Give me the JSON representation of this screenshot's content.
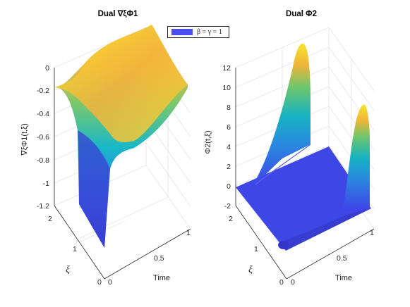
{
  "chart_data": [
    {
      "type": "surface",
      "title": "Dual ∇ξΦ1",
      "xlabel": "Time",
      "ylabel": "ξ",
      "zlabel": "∇ξΦ1(t,ξ)",
      "xlim": [
        0,
        1
      ],
      "ylim": [
        0,
        2
      ],
      "zlim": [
        -1.2,
        0
      ],
      "xticks": [
        "0",
        "0.5",
        "1"
      ],
      "yticks": [
        "0",
        "1",
        "2"
      ],
      "zticks": [
        "0",
        "-0.2",
        "-0.4",
        "-0.6",
        "-0.8",
        "-1",
        "-1.2"
      ],
      "colormap": "parula",
      "surface_profile": {
        "xi_at_t0": [
          0,
          0.5,
          1,
          1.5,
          2
        ],
        "value_at_t0": [
          -1.2,
          -1.0,
          -0.2,
          -0.2,
          -0.2
        ],
        "time_at_xi2": [
          0,
          0.25,
          0.5,
          0.75,
          1
        ],
        "value_at_xi2": [
          -0.2,
          -0.18,
          0.0,
          -0.05,
          -0.1
        ]
      }
    },
    {
      "type": "surface",
      "title": "Dual Φ2",
      "xlabel": "Time",
      "ylabel": "ξ",
      "zlabel": "Φ2(t,ξ)",
      "xlim": [
        0,
        1
      ],
      "ylim": [
        0,
        2
      ],
      "zlim": [
        -2,
        12
      ],
      "xticks": [
        "0",
        "0.5",
        "1"
      ],
      "yticks": [
        "0",
        "1",
        "2"
      ],
      "zticks": [
        "12",
        "10",
        "8",
        "6",
        "4",
        "2",
        "0",
        "-2"
      ],
      "colormap": "parula",
      "peaks": [
        {
          "time": 0,
          "xi": 2,
          "value": 12.5
        },
        {
          "time": 1,
          "xi": 0,
          "value": 8.5
        }
      ]
    }
  ],
  "legend": {
    "label": "β = γ = 1",
    "color": "#4a4df0"
  }
}
